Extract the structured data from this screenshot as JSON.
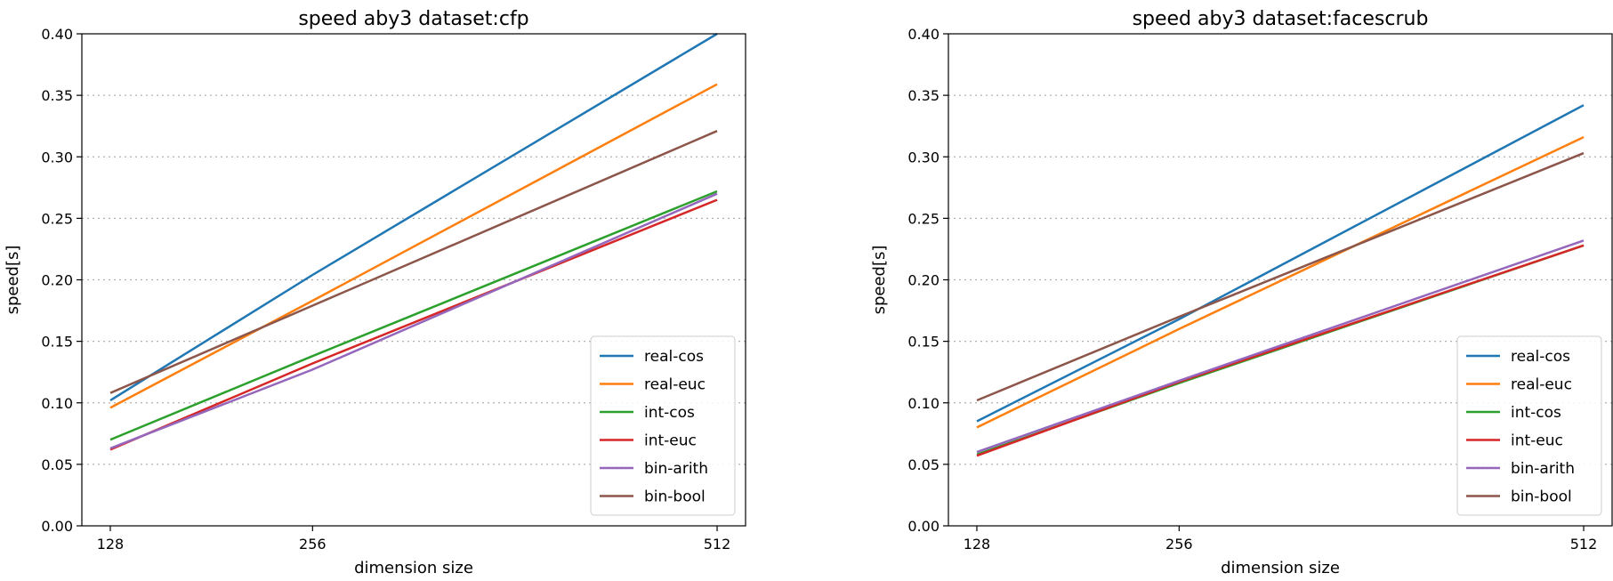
{
  "chart_data": [
    {
      "type": "line",
      "title": "speed aby3 dataset:cfp",
      "xlabel": "dimension size",
      "ylabel": "speed[s]",
      "x": [
        128,
        256,
        512
      ],
      "xticks": [
        "128",
        "256",
        "512"
      ],
      "xlim": [
        110,
        530
      ],
      "ylim": [
        0.0,
        0.4
      ],
      "yticks": [
        "0.00",
        "0.05",
        "0.10",
        "0.15",
        "0.20",
        "0.25",
        "0.30",
        "0.35",
        "0.40"
      ],
      "grid": "horizontal dotted",
      "legend_position": "lower-right",
      "series": [
        {
          "name": "real-cos",
          "color": "#1f77b4",
          "values": [
            0.102,
            0.204,
            0.4
          ]
        },
        {
          "name": "real-euc",
          "color": "#ff7f0e",
          "values": [
            0.096,
            0.183,
            0.359
          ]
        },
        {
          "name": "int-cos",
          "color": "#2ca02c",
          "values": [
            0.07,
            0.138,
            0.272
          ]
        },
        {
          "name": "int-euc",
          "color": "#d62728",
          "values": [
            0.062,
            0.132,
            0.265
          ]
        },
        {
          "name": "bin-arith",
          "color": "#9467bd",
          "values": [
            0.063,
            0.127,
            0.27
          ]
        },
        {
          "name": "bin-bool",
          "color": "#8c564b",
          "values": [
            0.108,
            0.179,
            0.321
          ]
        }
      ]
    },
    {
      "type": "line",
      "title": "speed aby3 dataset:facescrub",
      "xlabel": "dimension size",
      "ylabel": "speed[s]",
      "x": [
        128,
        256,
        512
      ],
      "xticks": [
        "128",
        "256",
        "512"
      ],
      "xlim": [
        110,
        530
      ],
      "ylim": [
        0.0,
        0.4
      ],
      "yticks": [
        "0.00",
        "0.05",
        "0.10",
        "0.15",
        "0.20",
        "0.25",
        "0.30",
        "0.35",
        "0.40"
      ],
      "grid": "horizontal dotted",
      "legend_position": "lower-right",
      "series": [
        {
          "name": "real-cos",
          "color": "#1f77b4",
          "values": [
            0.085,
            0.168,
            0.342
          ]
        },
        {
          "name": "real-euc",
          "color": "#ff7f0e",
          "values": [
            0.08,
            0.16,
            0.316
          ]
        },
        {
          "name": "int-cos",
          "color": "#2ca02c",
          "values": [
            0.058,
            0.116,
            0.228
          ]
        },
        {
          "name": "int-euc",
          "color": "#d62728",
          "values": [
            0.057,
            0.117,
            0.228
          ]
        },
        {
          "name": "bin-arith",
          "color": "#9467bd",
          "values": [
            0.06,
            0.118,
            0.232
          ]
        },
        {
          "name": "bin-bool",
          "color": "#8c564b",
          "values": [
            0.102,
            0.17,
            0.303
          ]
        }
      ]
    }
  ]
}
